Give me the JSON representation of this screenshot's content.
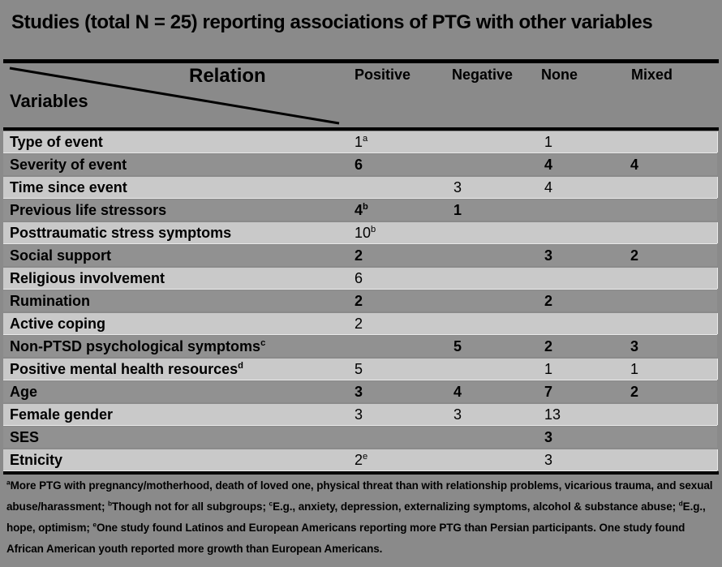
{
  "title": "Studies (total N = 25) reporting associations of PTG with other variables",
  "table": {
    "corner": {
      "relation_label": "Relation",
      "variables_label": "Variables"
    },
    "columns": [
      "Positive",
      "Negative",
      "None",
      "Mixed"
    ],
    "rows": [
      {
        "label": "Type of event",
        "label_sup": "",
        "values": [
          {
            "v": "1",
            "sup": "a"
          },
          null,
          {
            "v": "1"
          },
          null
        ]
      },
      {
        "label": "Severity of event",
        "label_sup": "",
        "values": [
          {
            "v": "6"
          },
          null,
          {
            "v": "4"
          },
          {
            "v": "4"
          }
        ]
      },
      {
        "label": "Time since event",
        "label_sup": "",
        "values": [
          null,
          {
            "v": "3"
          },
          {
            "v": "4"
          },
          null
        ]
      },
      {
        "label": "Previous life stressors",
        "label_sup": "",
        "values": [
          {
            "v": "4",
            "sup": "b"
          },
          {
            "v": "1"
          },
          null,
          null
        ]
      },
      {
        "label": "Posttraumatic stress symptoms",
        "label_sup": "",
        "values": [
          {
            "v": "10",
            "sup": "b"
          },
          null,
          null,
          null
        ]
      },
      {
        "label": "Social support",
        "label_sup": "",
        "values": [
          {
            "v": "2"
          },
          null,
          {
            "v": "3"
          },
          {
            "v": "2"
          }
        ]
      },
      {
        "label": "Religious involvement",
        "label_sup": "",
        "values": [
          {
            "v": "6"
          },
          null,
          null,
          null
        ]
      },
      {
        "label": "Rumination",
        "label_sup": "",
        "values": [
          {
            "v": "2"
          },
          null,
          {
            "v": "2"
          },
          null
        ]
      },
      {
        "label": "Active coping",
        "label_sup": "",
        "values": [
          {
            "v": "2"
          },
          null,
          null,
          null
        ]
      },
      {
        "label": "Non-PTSD psychological symptoms",
        "label_sup": "c",
        "values": [
          null,
          {
            "v": "5"
          },
          {
            "v": "2"
          },
          {
            "v": "3"
          }
        ]
      },
      {
        "label": "Positive mental health resources",
        "label_sup": "d",
        "values": [
          {
            "v": "5"
          },
          null,
          {
            "v": "1"
          },
          {
            "v": "1"
          }
        ]
      },
      {
        "label": "Age",
        "label_sup": "",
        "values": [
          {
            "v": "3"
          },
          {
            "v": "4"
          },
          {
            "v": "7"
          },
          {
            "v": "2"
          }
        ]
      },
      {
        "label": "Female gender",
        "label_sup": "",
        "values": [
          {
            "v": "3"
          },
          {
            "v": "3"
          },
          {
            "v": "13"
          },
          null
        ]
      },
      {
        "label": "SES",
        "label_sup": "",
        "values": [
          null,
          null,
          {
            "v": "3"
          },
          null
        ]
      },
      {
        "label": "Etnicity",
        "label_sup": "",
        "values": [
          {
            "v": "2",
            "sup": "e"
          },
          null,
          {
            "v": "3"
          },
          null
        ]
      }
    ]
  },
  "footnotes": {
    "segments": [
      {
        "sup": "a",
        "text": "More PTG with pregnancy/motherhood, death of loved one, physical threat than with relationship problems, vicarious trauma, and sexual abuse/harassment; "
      },
      {
        "sup": "b",
        "text": "Though not for all subgroups; "
      },
      {
        "sup": "c",
        "text": "E.g., anxiety, depression, externalizing symptoms, alcohol & substance abuse; "
      },
      {
        "sup": "d",
        "text": "E.g., hope, optimism; "
      },
      {
        "sup": "e",
        "text": "One study found Latinos and European Americans reporting more PTG than Persian participants. One study found African American youth reported more growth than European Americans."
      }
    ]
  },
  "colors": {
    "page_background": "#8a8a8a",
    "row_light": "#c9c9c9",
    "row_dark": "#919191",
    "rule": "#000000",
    "text": "#000000"
  },
  "chart_data": {
    "type": "table",
    "title": "Studies (total N = 25) reporting associations of PTG with other variables",
    "columns": [
      "Variables",
      "Positive",
      "Negative",
      "None",
      "Mixed"
    ],
    "rows": [
      [
        "Type of event",
        "1a",
        "",
        "1",
        ""
      ],
      [
        "Severity of event",
        "6",
        "",
        "4",
        "4"
      ],
      [
        "Time since event",
        "",
        "3",
        "4",
        ""
      ],
      [
        "Previous life stressors",
        "4b",
        "1",
        "",
        ""
      ],
      [
        "Posttraumatic stress symptoms",
        "10b",
        "",
        "",
        ""
      ],
      [
        "Social support",
        "2",
        "",
        "3",
        "2"
      ],
      [
        "Religious involvement",
        "6",
        "",
        "",
        ""
      ],
      [
        "Rumination",
        "2",
        "",
        "2",
        ""
      ],
      [
        "Active coping",
        "2",
        "",
        "",
        ""
      ],
      [
        "Non-PTSD psychological symptomsc",
        "",
        "5",
        "2",
        "3"
      ],
      [
        "Positive mental health resourcesd",
        "5",
        "",
        "1",
        "1"
      ],
      [
        "Age",
        "3",
        "4",
        "7",
        "2"
      ],
      [
        "Female gender",
        "3",
        "3",
        "13",
        ""
      ],
      [
        "SES",
        "",
        "",
        "3",
        ""
      ],
      [
        "Etnicity",
        "2e",
        "",
        "3",
        ""
      ]
    ]
  }
}
